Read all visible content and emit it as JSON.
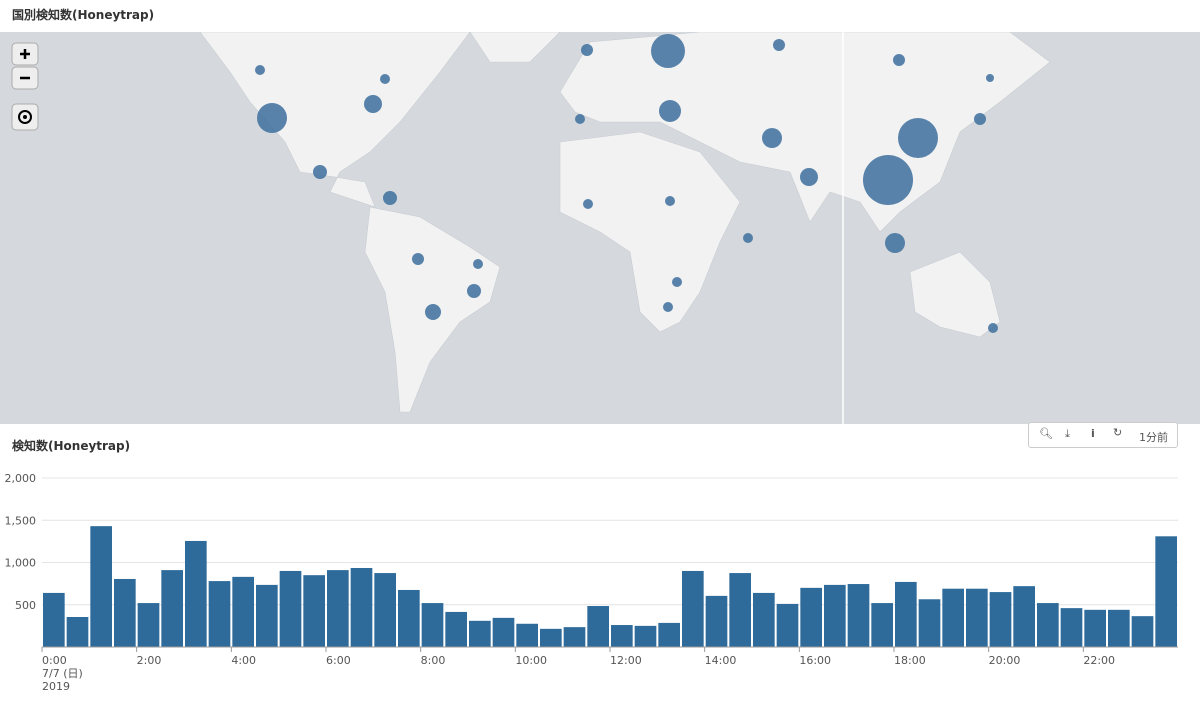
{
  "map_panel": {
    "title": "国別検知数(Honeytrap)"
  },
  "chart_panel": {
    "title": "検知数(Honeytrap)",
    "toolbar_time": "1分前"
  },
  "chart_data": {
    "type": "bar",
    "categories": [
      "0:00",
      null,
      null,
      null,
      "2:00",
      null,
      null,
      null,
      "4:00",
      null,
      null,
      null,
      "6:00",
      null,
      null,
      null,
      "8:00",
      null,
      null,
      null,
      "10:00",
      null,
      null,
      null,
      "12:00",
      null,
      null,
      null,
      "14:00",
      null,
      null,
      null,
      "16:00",
      null,
      null,
      null,
      "18:00",
      null,
      null,
      null,
      "20:00",
      null,
      null,
      null,
      "22:00",
      null,
      null,
      null
    ],
    "date_label": "7/7 (日)",
    "year_label": "2019",
    "values": [
      640,
      355,
      1430,
      805,
      520,
      910,
      1255,
      780,
      830,
      735,
      900,
      850,
      910,
      935,
      875,
      675,
      520,
      415,
      310,
      345,
      275,
      215,
      235,
      485,
      260,
      250,
      285,
      900,
      605,
      875,
      640,
      510,
      700,
      735,
      745,
      520,
      770,
      565,
      690,
      690,
      650,
      720,
      520,
      460,
      440,
      440,
      365,
      1310
    ],
    "color": "#2e6b9a",
    "ylim": [
      0,
      2000
    ],
    "yticks": [
      500,
      {
        "value": 1000,
        "label": "1,000"
      },
      {
        "value": 1500,
        "label": "1,500"
      },
      {
        "value": 2000,
        "label": "2,000"
      }
    ],
    "grid": true
  }
}
